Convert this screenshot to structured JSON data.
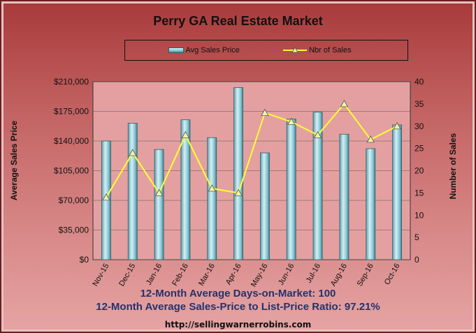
{
  "chart_data": {
    "type": "bar",
    "title": "Perry GA Real Estate Market",
    "categories": [
      "Nov-15",
      "Dec-15",
      "Jan-16",
      "Feb-16",
      "Mar-16",
      "Apr-16",
      "May-16",
      "Jun-16",
      "Jul-16",
      "Aug-16",
      "Sep-16",
      "Oct-16"
    ],
    "series": [
      {
        "name": "Avg Sales Price",
        "type": "bar",
        "axis": "left",
        "values": [
          140000,
          161000,
          130000,
          165000,
          144000,
          203000,
          126000,
          166000,
          174000,
          148000,
          131000,
          159000
        ]
      },
      {
        "name": "Nbr of Sales",
        "type": "line",
        "axis": "right",
        "values": [
          14,
          24,
          15,
          28,
          16,
          15,
          33,
          31,
          28,
          35,
          27,
          30
        ]
      }
    ],
    "ylabel_left": "Average Sales Price",
    "ylabel_right": "Number of Sales",
    "ylim_left": [
      0,
      210000
    ],
    "ylim_right": [
      0,
      40
    ],
    "yticks_left": [
      "$0",
      "$35,000",
      "$70,000",
      "$105,000",
      "$140,000",
      "$175,000",
      "$210,000"
    ],
    "yticks_right": [
      "0",
      "5",
      "10",
      "15",
      "20",
      "25",
      "30",
      "35",
      "40"
    ],
    "grid": true,
    "legend": "top",
    "colors": {
      "bar": "#7fc2cf",
      "line": "#ffff33"
    }
  },
  "footer": {
    "line1": "12-Month Average Days-on-Market: 100",
    "line2": "12-Month Average Sales-Price to List-Price Ratio: 97.21%"
  },
  "url": "http://sellingwarnerrobins.com"
}
